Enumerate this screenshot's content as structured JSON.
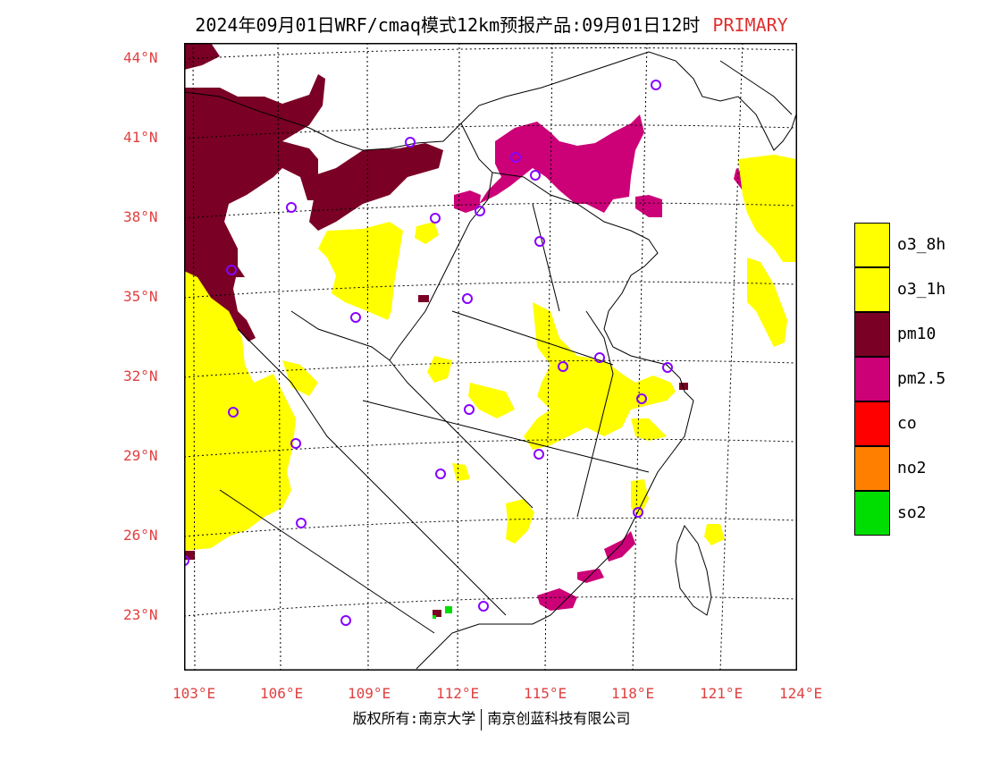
{
  "title": {
    "text": "2024年09月01日WRF/cmaq模式12km预报产品:09月01日12时",
    "tag": "PRIMARY"
  },
  "lat_labels": [
    "44°N",
    "41°N",
    "38°N",
    "35°N",
    "32°N",
    "29°N",
    "26°N",
    "23°N"
  ],
  "lon_labels": [
    "103°E",
    "106°E",
    "109°E",
    "112°E",
    "115°E",
    "118°E",
    "121°E",
    "124°E"
  ],
  "legend": [
    {
      "label": "o3_8h",
      "color": "#ffff00"
    },
    {
      "label": "o3_1h",
      "color": "#ffff00"
    },
    {
      "label": "pm10",
      "color": "#7a0025"
    },
    {
      "label": "pm2.5",
      "color": "#cc0077"
    },
    {
      "label": "co",
      "color": "#ff0000"
    },
    {
      "label": "no2",
      "color": "#ff7f00"
    },
    {
      "label": "so2",
      "color": "#00dd00"
    }
  ],
  "footer": {
    "left": "版权所有:南京大学",
    "right": "南京创蓝科技有限公司"
  },
  "colors": {
    "axis_label": "#e04040",
    "station_marker": "#8800ff"
  }
}
